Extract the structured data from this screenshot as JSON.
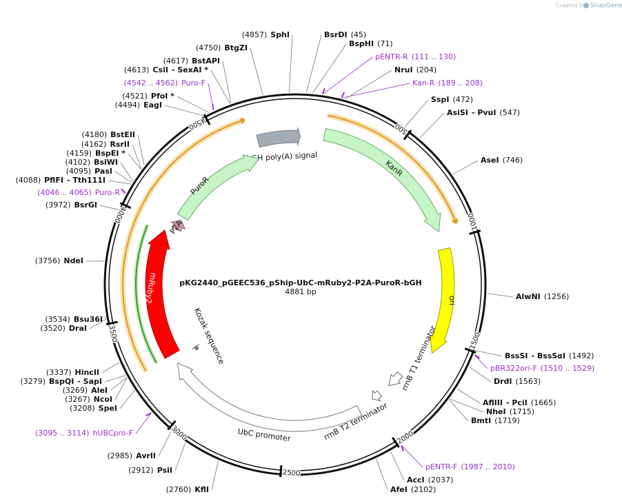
{
  "header": {
    "credit": "Created by",
    "brand": "SnapGene"
  },
  "plasmid": {
    "name": "pKG2440_pGEEC536_pShip-UbC-mRuby2-P2A-PuroR-bGH",
    "size": "4881 bp"
  },
  "features": [
    "bGH poly(A) signal",
    "KanR",
    "ori",
    "rrnB T1 terminator",
    "rrnB T2 terminator",
    "UbC promoter",
    "Kozak sequence",
    "mRuby2",
    "P2A",
    "PuroR"
  ],
  "ticks": [
    "500",
    "1000",
    "1500",
    "2000",
    "2500",
    "3000",
    "3500",
    "4000",
    "4500"
  ],
  "sites": [
    {
      "position": "(45)",
      "names": [
        "BsrDI"
      ]
    },
    {
      "position": "(71)",
      "names": [
        "BspHI"
      ]
    },
    {
      "position": "(204)",
      "names": [
        "NruI"
      ]
    },
    {
      "position": "(472)",
      "names": [
        "SspI"
      ]
    },
    {
      "position": "(547)",
      "names": [
        "AsiSI",
        "- PvuI"
      ]
    },
    {
      "position": "(746)",
      "names": [
        "AseI"
      ]
    },
    {
      "position": "(1256)",
      "names": [
        "AlwNI"
      ]
    },
    {
      "position": "(1492)",
      "names": [
        "BssSI",
        "- BssSαI"
      ]
    },
    {
      "position": "(1563)",
      "names": [
        "DrdI"
      ]
    },
    {
      "position": "(1665)",
      "names": [
        "AflIII",
        "- PciI"
      ]
    },
    {
      "position": "(1715)",
      "names": [
        "NheI"
      ]
    },
    {
      "position": "(1719)",
      "names": [
        "BmtI"
      ]
    },
    {
      "position": "(2037)",
      "names": [
        "AccI"
      ]
    },
    {
      "position": "(2102)",
      "names": [
        "AfeI"
      ]
    },
    {
      "position": "(4857)",
      "names": [
        "SphI"
      ]
    },
    {
      "position": "(4750)",
      "names": [
        "BtgZI"
      ]
    },
    {
      "position": "(4617)",
      "names": [
        "BstAPI"
      ]
    },
    {
      "position": "(4613)",
      "names": [
        "CsiI",
        "- SexAI *"
      ]
    },
    {
      "position": "(4521)",
      "names": [
        "PfoI *"
      ]
    },
    {
      "position": "(4494)",
      "names": [
        "EagI"
      ]
    },
    {
      "position": "(4180)",
      "names": [
        "BstEII"
      ]
    },
    {
      "position": "(4162)",
      "names": [
        "RsrII"
      ]
    },
    {
      "position": "(4159)",
      "names": [
        "BspEI *"
      ]
    },
    {
      "position": "(4102)",
      "names": [
        "BsiWI"
      ]
    },
    {
      "position": "(4095)",
      "names": [
        "PasI"
      ]
    },
    {
      "position": "(4088)",
      "names": [
        "PflFI",
        "- Tth111I"
      ]
    },
    {
      "position": "(3972)",
      "names": [
        "BsrGI"
      ]
    },
    {
      "position": "(3756)",
      "names": [
        "NdeI"
      ]
    },
    {
      "position": "(3534)",
      "names": [
        "Bsu36I"
      ]
    },
    {
      "position": "(3520)",
      "names": [
        "DraI"
      ]
    },
    {
      "position": "(3337)",
      "names": [
        "HincII"
      ]
    },
    {
      "position": "(3279)",
      "names": [
        "BspQI",
        "- SapI"
      ]
    },
    {
      "position": "(3269)",
      "names": [
        "AleI"
      ]
    },
    {
      "position": "(3267)",
      "names": [
        "NcoI"
      ]
    },
    {
      "position": "(3208)",
      "names": [
        "SpeI"
      ]
    },
    {
      "position": "(2985)",
      "names": [
        "AvrII"
      ]
    },
    {
      "position": "(2912)",
      "names": [
        "PsiI"
      ]
    },
    {
      "position": "(2760)",
      "names": [
        "KflI"
      ]
    }
  ],
  "primers": [
    {
      "name": "pENTR-R",
      "range": "(111 .. 130)"
    },
    {
      "name": "Kan-R",
      "range": "(189 .. 208)"
    },
    {
      "name": "pBR322ori-F",
      "range": "(1510 .. 1529)"
    },
    {
      "name": "pENTR-F",
      "range": "(1987 .. 2010)"
    },
    {
      "name": "Puro-F",
      "range": "(4542 .. 4562)"
    },
    {
      "name": "Puro-R",
      "range": "(4046 .. 4065)"
    },
    {
      "name": "hUBCpro-F",
      "range": "(3095 .. 3114)"
    }
  ]
}
